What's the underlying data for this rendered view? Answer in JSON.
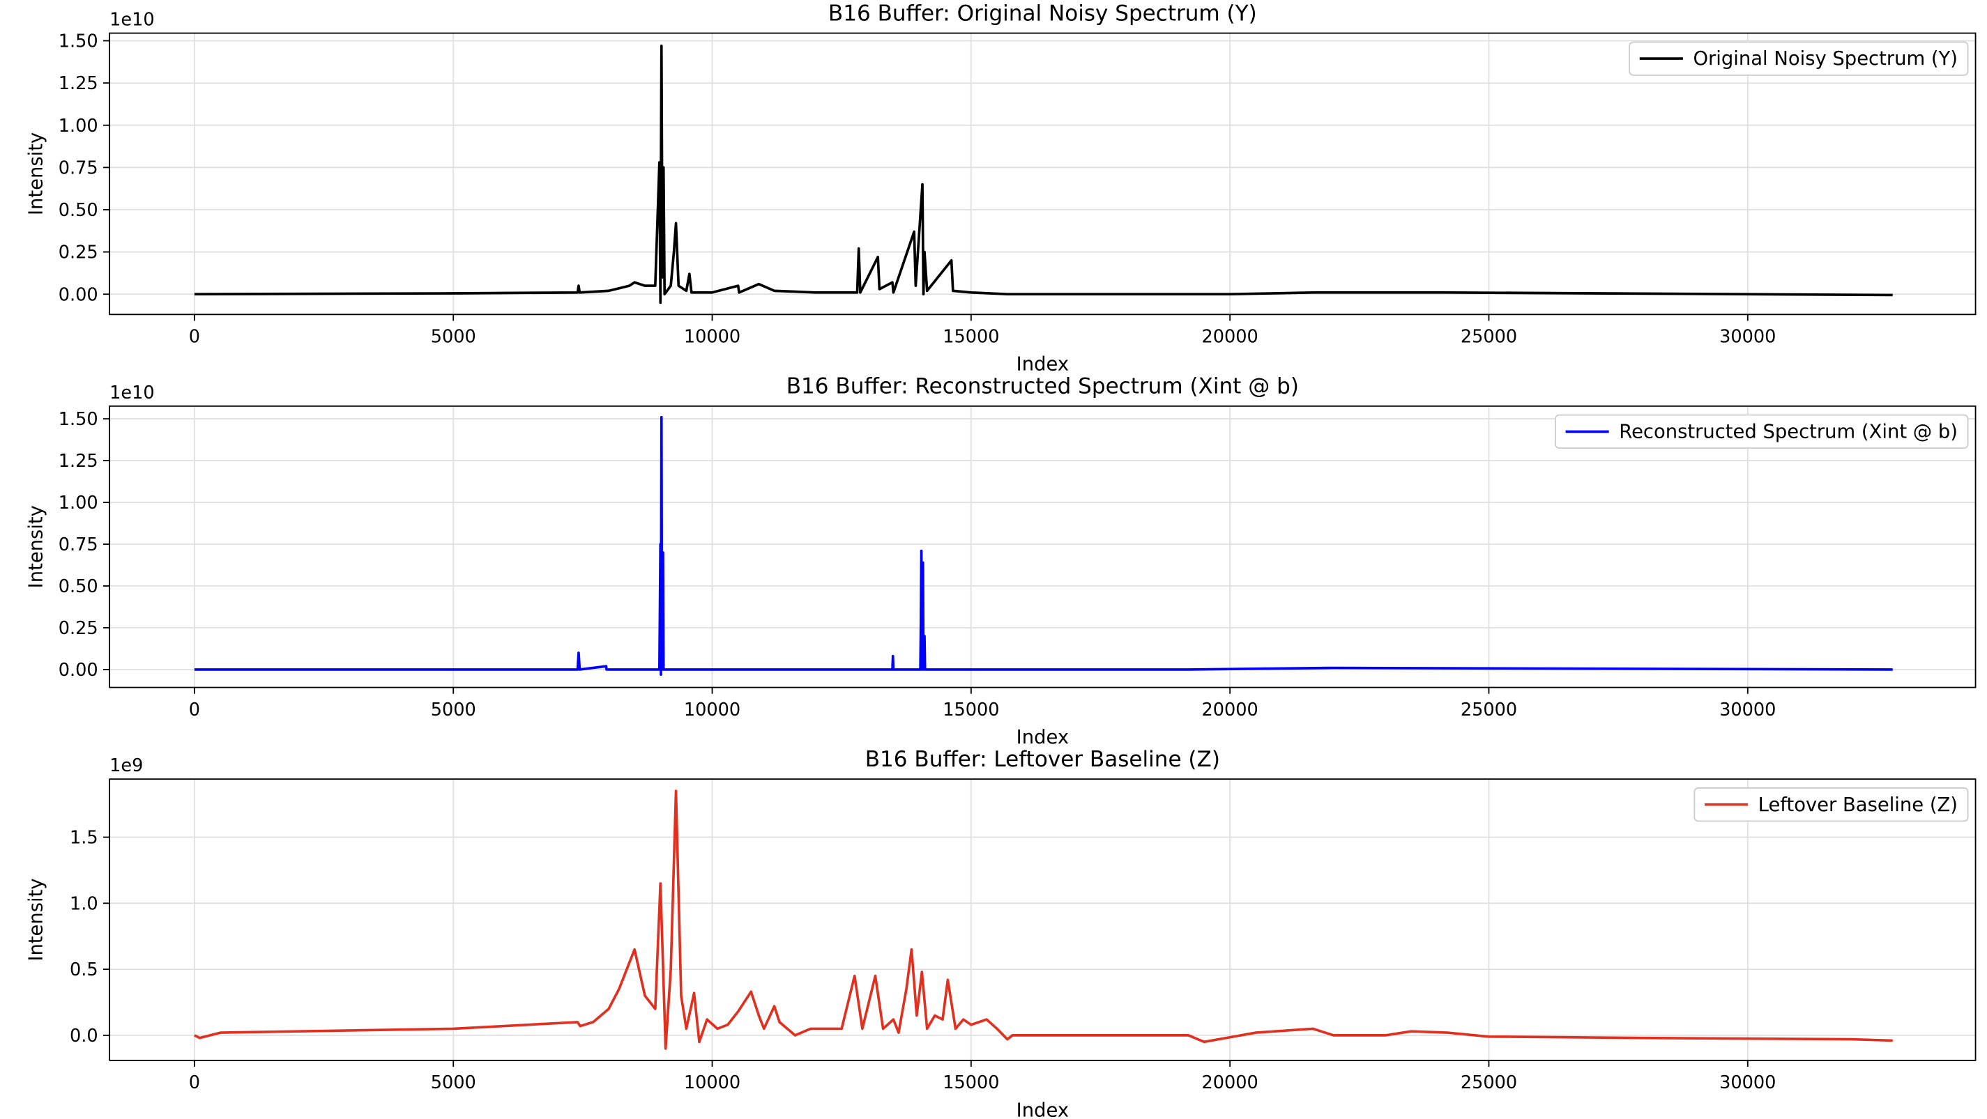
{
  "chart_data": [
    {
      "type": "line",
      "title": "B16 Buffer: Original Noisy Spectrum (Y)",
      "xlabel": "Index",
      "ylabel": "Intensity",
      "y_offset": "1e10",
      "legend": "upper right",
      "grid": true,
      "x": [
        0,
        5000,
        7400,
        7420,
        7440,
        8000,
        8400,
        8500,
        8700,
        8900,
        8980,
        9000,
        9020,
        9040,
        9060,
        9080,
        9200,
        9260,
        9300,
        9350,
        9500,
        9560,
        9600,
        10000,
        10500,
        10520,
        10900,
        11200,
        12000,
        12800,
        12830,
        12860,
        13200,
        13230,
        13480,
        13500,
        13900,
        13930,
        14060,
        14080,
        14100,
        14150,
        14620,
        14650,
        15000,
        15700,
        19200,
        20000,
        21600,
        24200,
        32800
      ],
      "series": [
        {
          "name": "Original Noisy Spectrum (Y)",
          "color": "#000000",
          "values": [
            0,
            0.005,
            0.01,
            0.05,
            0.01,
            0.02,
            0.05,
            0.07,
            0.05,
            0.05,
            0.78,
            -0.05,
            1.47,
            0.1,
            0.75,
            0.0,
            0.05,
            0.25,
            0.42,
            0.05,
            0.02,
            0.12,
            0.01,
            0.01,
            0.05,
            0.01,
            0.06,
            0.02,
            0.01,
            0.01,
            0.27,
            0.01,
            0.22,
            0.03,
            0.07,
            0.01,
            0.37,
            0.05,
            0.65,
            0.0,
            0.25,
            0.02,
            0.2,
            0.02,
            0.01,
            0,
            0,
            0.0,
            0.01,
            0.01,
            -0.005
          ]
        }
      ],
      "xlim": [
        -1640,
        34400
      ],
      "xticks": [
        0,
        5000,
        10000,
        15000,
        20000,
        25000,
        30000
      ],
      "ylim": [
        -0.12,
        1.545
      ],
      "yticks": [
        {
          "value": 0,
          "label": "0.00"
        },
        {
          "value": 0.25,
          "label": "0.25"
        },
        {
          "value": 0.5,
          "label": "0.50"
        },
        {
          "value": 0.75,
          "label": "0.75"
        },
        {
          "value": 1,
          "label": "1.00"
        },
        {
          "value": 1.25,
          "label": "1.25"
        },
        {
          "value": 1.5,
          "label": "1.50"
        }
      ]
    },
    {
      "type": "line",
      "title": "B16 Buffer: Reconstructed Spectrum (Xint @ b)",
      "xlabel": "Index",
      "ylabel": "Intensity",
      "y_offset": "1e10",
      "legend": "upper right",
      "grid": true,
      "x": [
        0,
        7400,
        7420,
        7440,
        7950,
        7960,
        8980,
        9000,
        9010,
        9020,
        9030,
        9050,
        9060,
        13480,
        13490,
        13500,
        14020,
        14030,
        14040,
        14050,
        14070,
        14080,
        14100,
        14110,
        15700,
        19200,
        22000,
        32800
      ],
      "series": [
        {
          "name": "Reconstructed Spectrum (Xint @ b)",
          "color": "#0000ff",
          "values": [
            0,
            0,
            0.1,
            0,
            0.02,
            0,
            0,
            0.75,
            -0.03,
            1.51,
            0,
            0.7,
            0,
            0,
            0.08,
            0,
            0,
            0.27,
            0.71,
            0,
            0.64,
            0,
            0.2,
            0,
            0,
            0,
            0.01,
            0
          ]
        }
      ],
      "xlim": [
        -1640,
        34400
      ],
      "xticks": [
        0,
        5000,
        10000,
        15000,
        20000,
        25000,
        30000
      ],
      "ylim": [
        -0.107,
        1.576
      ],
      "yticks": [
        {
          "value": 0,
          "label": "0.00"
        },
        {
          "value": 0.25,
          "label": "0.25"
        },
        {
          "value": 0.5,
          "label": "0.50"
        },
        {
          "value": 0.75,
          "label": "0.75"
        },
        {
          "value": 1,
          "label": "1.00"
        },
        {
          "value": 1.25,
          "label": "1.25"
        },
        {
          "value": 1.5,
          "label": "1.50"
        }
      ]
    },
    {
      "type": "line",
      "title": "B16 Buffer: Leftover Baseline (Z)",
      "xlabel": "Index",
      "ylabel": "Intensity",
      "y_offset": "1e9",
      "legend": "upper right",
      "grid": true,
      "x": [
        0,
        100,
        500,
        2000,
        5000,
        7400,
        7450,
        7700,
        8000,
        8200,
        8500,
        8700,
        8900,
        9000,
        9100,
        9200,
        9300,
        9400,
        9500,
        9650,
        9750,
        9900,
        10100,
        10300,
        10500,
        10750,
        10900,
        11000,
        11200,
        11300,
        11600,
        11900,
        12200,
        12500,
        12750,
        12900,
        13150,
        13300,
        13500,
        13600,
        13750,
        13850,
        13950,
        14050,
        14150,
        14300,
        14450,
        14550,
        14700,
        14850,
        15000,
        15300,
        15500,
        15700,
        15800,
        19200,
        19500,
        20500,
        21600,
        22000,
        23000,
        23500,
        24200,
        25000,
        28000,
        32000,
        32800
      ],
      "series": [
        {
          "name": "Leftover Baseline (Z)",
          "color": "#e03020",
          "values": [
            0,
            -0.02,
            0.02,
            0.03,
            0.05,
            0.1,
            0.07,
            0.1,
            0.2,
            0.35,
            0.65,
            0.3,
            0.2,
            1.15,
            -0.1,
            0.5,
            1.85,
            0.3,
            0.05,
            0.32,
            -0.05,
            0.12,
            0.05,
            0.08,
            0.18,
            0.33,
            0.15,
            0.05,
            0.22,
            0.1,
            0.0,
            0.05,
            0.05,
            0.05,
            0.45,
            0.05,
            0.45,
            0.05,
            0.12,
            0.02,
            0.35,
            0.65,
            0.15,
            0.48,
            0.05,
            0.15,
            0.12,
            0.42,
            0.05,
            0.12,
            0.08,
            0.12,
            0.05,
            -0.03,
            0,
            0,
            -0.05,
            0.02,
            0.05,
            0.0,
            0.0,
            0.03,
            0.02,
            -0.01,
            -0.02,
            -0.03,
            -0.04
          ]
        }
      ],
      "xlim": [
        -1640,
        34400
      ],
      "xticks": [
        0,
        5000,
        10000,
        15000,
        20000,
        25000,
        30000
      ],
      "ylim": [
        -0.19,
        1.94
      ],
      "yticks": [
        {
          "value": 0,
          "label": "0.0"
        },
        {
          "value": 0.5,
          "label": "0.5"
        },
        {
          "value": 1,
          "label": "1.0"
        },
        {
          "value": 1.5,
          "label": "1.5"
        }
      ]
    }
  ]
}
